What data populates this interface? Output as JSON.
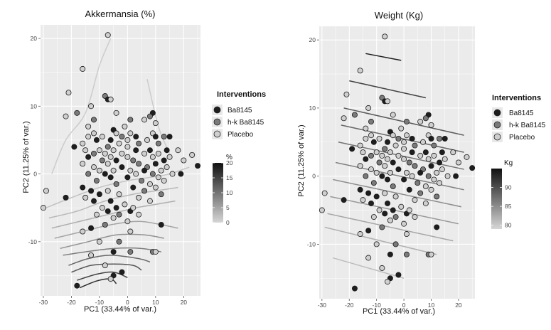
{
  "chart_data": [
    {
      "type": "scatter",
      "title": "Akkermansia (%)",
      "xlabel": "PC1 (33.44% of var.)",
      "ylabel": "PC2 (11.25% of var.)",
      "xlim": [
        -31,
        26
      ],
      "ylim": [
        -18,
        22
      ],
      "xticks": [
        -30,
        -20,
        -10,
        0,
        10,
        20
      ],
      "yticks": [
        -10,
        0,
        10,
        20
      ],
      "grid": true,
      "legend": {
        "title": "Interventions",
        "placement": "right",
        "entries": [
          {
            "label": "Ba8145",
            "color": "#1e1e1e"
          },
          {
            "label": "h-k Ba8145",
            "color": "#7a7a7a"
          },
          {
            "label": "Placebo",
            "color": "#cfcfcf"
          }
        ]
      },
      "colorbar": {
        "title": "%",
        "ticks": [
          "0",
          "5",
          "10",
          "15",
          "20"
        ],
        "range": [
          0,
          20
        ],
        "colors": [
          "#d6d6d6",
          "#111111"
        ]
      },
      "contours": [
        {
          "level": 1,
          "points": [
            [
              -27,
              0
            ],
            [
              -22,
              5
            ],
            [
              -15,
              9
            ],
            [
              -10,
              16
            ],
            [
              -6,
              20
            ]
          ]
        },
        {
          "level": 1,
          "points": [
            [
              7,
              14
            ],
            [
              11,
              7
            ],
            [
              15,
              3
            ]
          ]
        },
        {
          "level": 2,
          "points": [
            [
              -29,
              -5
            ],
            [
              -20,
              -3.5
            ],
            [
              -10,
              -2
            ],
            [
              0,
              -1
            ],
            [
              8,
              -0.5
            ],
            [
              15,
              0
            ],
            [
              22,
              1
            ]
          ]
        },
        {
          "level": 3,
          "points": [
            [
              -28,
              -6.5
            ],
            [
              -18,
              -5.5
            ],
            [
              -8,
              -4
            ],
            [
              2,
              -3
            ],
            [
              10,
              -2.5
            ],
            [
              18,
              -2
            ]
          ]
        },
        {
          "level": 4,
          "points": [
            [
              -27,
              -8
            ],
            [
              -17,
              -7
            ],
            [
              -7,
              -6
            ],
            [
              3,
              -5
            ],
            [
              10,
              -4.5
            ],
            [
              17,
              -4
            ]
          ]
        },
        {
          "level": 5,
          "points": [
            [
              -26,
              -9.5
            ],
            [
              -16,
              -8.5
            ],
            [
              -6,
              -7.5
            ],
            [
              4,
              -7
            ],
            [
              12,
              -7.5
            ],
            [
              18,
              -8
            ]
          ]
        },
        {
          "level": 7,
          "points": [
            [
              -24,
              -11
            ],
            [
              -14,
              -10
            ],
            [
              -4,
              -9
            ],
            [
              6,
              -9
            ],
            [
              13,
              -9.5
            ]
          ]
        },
        {
          "level": 9,
          "points": [
            [
              -23,
              -12
            ],
            [
              -15,
              -11.5
            ],
            [
              -5,
              -11
            ],
            [
              5,
              -11
            ],
            [
              12,
              -11.5
            ]
          ]
        },
        {
          "level": 11,
          "points": [
            [
              -21,
              -13.5
            ],
            [
              -14,
              -12.5
            ],
            [
              -6,
              -12
            ],
            [
              4,
              -12.5
            ],
            [
              8,
              -13
            ]
          ]
        },
        {
          "level": 13,
          "points": [
            [
              -20,
              -14.5
            ],
            [
              -13,
              -13.5
            ],
            [
              -5,
              -13.3
            ],
            [
              2,
              -13.5
            ],
            [
              5,
              -14.2
            ]
          ]
        },
        {
          "level": 15,
          "points": [
            [
              -18,
              -15.7
            ],
            [
              -11,
              -14.8
            ],
            [
              -5,
              -14.5
            ],
            [
              0,
              -15.3
            ]
          ]
        },
        {
          "level": 17,
          "points": [
            [
              -17,
              -16.8
            ],
            [
              -11,
              -15.8
            ],
            [
              -6,
              -15.5
            ],
            [
              -4,
              -16.2
            ]
          ]
        }
      ]
    },
    {
      "type": "scatter",
      "title": "Weight (Kg)",
      "xlabel": "PC1 (33.44% of var.)",
      "ylabel": "PC2 (11.25% of var.)",
      "xlim": [
        -31,
        26
      ],
      "ylim": [
        -18,
        22
      ],
      "xticks": [
        -30,
        -20,
        -10,
        0,
        10,
        20
      ],
      "yticks": [
        -10,
        0,
        10,
        20
      ],
      "grid": true,
      "legend": {
        "title": "Interventions",
        "placement": "right",
        "entries": [
          {
            "label": "Ba8145",
            "color": "#1e1e1e"
          },
          {
            "label": "h-k Ba8145",
            "color": "#7a7a7a"
          },
          {
            "label": "Placebo",
            "color": "#cfcfcf"
          }
        ]
      },
      "colorbar": {
        "title": "Kg",
        "ticks": [
          "80",
          "85",
          "90"
        ],
        "range": [
          79,
          95
        ],
        "colors": [
          "#d6d6d6",
          "#111111"
        ]
      },
      "contours": [
        {
          "level": 94,
          "points": [
            [
              -14,
              18
            ],
            [
              -1,
              17
            ]
          ]
        },
        {
          "level": 91,
          "points": [
            [
              -20,
              14
            ],
            [
              8,
              11.5
            ]
          ]
        },
        {
          "level": 89,
          "points": [
            [
              -22,
              10
            ],
            [
              22,
              6
            ]
          ]
        },
        {
          "level": 88,
          "points": [
            [
              -23,
              7.5
            ],
            [
              22,
              3.5
            ]
          ]
        },
        {
          "level": 87,
          "points": [
            [
              -24,
              5
            ],
            [
              22,
              1
            ]
          ]
        },
        {
          "level": 86,
          "points": [
            [
              -25,
              2
            ],
            [
              22,
              -2
            ]
          ]
        },
        {
          "level": 85,
          "points": [
            [
              -26,
              -0.5
            ],
            [
              21,
              -4.5
            ]
          ]
        },
        {
          "level": 84,
          "points": [
            [
              -27,
              -3
            ],
            [
              20,
              -7
            ]
          ]
        },
        {
          "level": 83,
          "points": [
            [
              -28,
              -5.5
            ],
            [
              18,
              -9.5
            ]
          ]
        },
        {
          "level": 82,
          "points": [
            [
              -29,
              -7.5
            ],
            [
              12,
              -11.5
            ]
          ]
        },
        {
          "level": 81,
          "points": [
            [
              -26,
              -12
            ],
            [
              0,
              -15
            ]
          ]
        }
      ]
    }
  ],
  "points": [
    {
      "x": -7,
      "y": 20.5,
      "g": "Placebo"
    },
    {
      "x": -16,
      "y": 15.5,
      "g": "Placebo"
    },
    {
      "x": -21,
      "y": 12,
      "g": "Placebo"
    },
    {
      "x": -8,
      "y": 11.5,
      "g": "h-k Ba8145"
    },
    {
      "x": -7,
      "y": 11,
      "g": "Ba8145"
    },
    {
      "x": -6,
      "y": 11,
      "g": "Placebo"
    },
    {
      "x": -13,
      "y": 10,
      "g": "Placebo"
    },
    {
      "x": -18,
      "y": 9,
      "g": "h-k Ba8145"
    },
    {
      "x": -4,
      "y": 9,
      "g": "Placebo"
    },
    {
      "x": 9,
      "y": 9,
      "g": "Ba8145"
    },
    {
      "x": -22,
      "y": 8.5,
      "g": "Placebo"
    },
    {
      "x": 8,
      "y": 8.5,
      "g": "h-k Ba8145"
    },
    {
      "x": -12,
      "y": 8,
      "g": "h-k Ba8145"
    },
    {
      "x": 1,
      "y": 8,
      "g": "h-k Ba8145"
    },
    {
      "x": 6,
      "y": 8,
      "g": "Placebo"
    },
    {
      "x": 10,
      "y": 7.5,
      "g": "Placebo"
    },
    {
      "x": -14,
      "y": 7,
      "g": "Placebo"
    },
    {
      "x": -1,
      "y": 7,
      "g": "Placebo"
    },
    {
      "x": -5,
      "y": 6.5,
      "g": "Ba8145"
    },
    {
      "x": -12,
      "y": 6,
      "g": "Placebo"
    },
    {
      "x": -4,
      "y": 6,
      "g": "Placebo"
    },
    {
      "x": 1,
      "y": 6,
      "g": "Placebo"
    },
    {
      "x": 9,
      "y": 6,
      "g": "Placebo"
    },
    {
      "x": -14,
      "y": 5.5,
      "g": "Placebo"
    },
    {
      "x": -9,
      "y": 5.5,
      "g": "Placebo"
    },
    {
      "x": -2,
      "y": 5.5,
      "g": "h-k Ba8145"
    },
    {
      "x": 3,
      "y": 5.5,
      "g": "Ba8145"
    },
    {
      "x": 10,
      "y": 5.5,
      "g": "Ba8145"
    },
    {
      "x": 13,
      "y": 5.5,
      "g": "h-k Ba8145"
    },
    {
      "x": 15,
      "y": 5.5,
      "g": "Ba8145"
    },
    {
      "x": -11,
      "y": 5,
      "g": "Ba8145"
    },
    {
      "x": -6,
      "y": 5,
      "g": "Ba8145"
    },
    {
      "x": 0,
      "y": 5,
      "g": "Placebo"
    },
    {
      "x": 7,
      "y": 5,
      "g": "Placebo"
    },
    {
      "x": -16,
      "y": 4.5,
      "g": "Placebo"
    },
    {
      "x": -3,
      "y": 4.5,
      "g": "Placebo"
    },
    {
      "x": 4,
      "y": 4.5,
      "g": "h-k Ba8145"
    },
    {
      "x": 11,
      "y": 4.5,
      "g": "h-k Ba8145"
    },
    {
      "x": -19,
      "y": 4,
      "g": "Ba8145"
    },
    {
      "x": -7,
      "y": 4,
      "g": "h-k Ba8145"
    },
    {
      "x": 0,
      "y": 4,
      "g": "Placebo"
    },
    {
      "x": -15,
      "y": 3.5,
      "g": "Placebo"
    },
    {
      "x": -10,
      "y": 3.5,
      "g": "Placebo"
    },
    {
      "x": -5,
      "y": 3.5,
      "g": "Placebo"
    },
    {
      "x": 3,
      "y": 3.5,
      "g": "Ba8145"
    },
    {
      "x": 8,
      "y": 3.5,
      "g": "Ba8145"
    },
    {
      "x": 14,
      "y": 3.5,
      "g": "Ba8145"
    },
    {
      "x": 18,
      "y": 3.5,
      "g": "Placebo"
    },
    {
      "x": -12,
      "y": 3,
      "g": "h-k Ba8145"
    },
    {
      "x": -8,
      "y": 3,
      "g": "Placebo"
    },
    {
      "x": -2,
      "y": 3,
      "g": "Placebo"
    },
    {
      "x": 6,
      "y": 3,
      "g": "Placebo"
    },
    {
      "x": 11,
      "y": 3,
      "g": "Placebo"
    },
    {
      "x": -14,
      "y": 2.5,
      "g": "Ba8145"
    },
    {
      "x": -6,
      "y": 2.5,
      "g": "Placebo"
    },
    {
      "x": 0,
      "y": 2.5,
      "g": "Placebo"
    },
    {
      "x": 9,
      "y": 2.5,
      "g": "Placebo"
    },
    {
      "x": 15,
      "y": 2.5,
      "g": "Placebo"
    },
    {
      "x": 23,
      "y": 2.8,
      "g": "Placebo"
    },
    {
      "x": -9,
      "y": 2,
      "g": "h-k Ba8145"
    },
    {
      "x": -4,
      "y": 2,
      "g": "Ba8145"
    },
    {
      "x": 2,
      "y": 2,
      "g": "h-k Ba8145"
    },
    {
      "x": 13,
      "y": 2,
      "g": "Ba8145"
    },
    {
      "x": 20,
      "y": 2,
      "g": "Placebo"
    },
    {
      "x": -16,
      "y": 1.5,
      "g": "Placebo"
    },
    {
      "x": -7,
      "y": 1.5,
      "g": "Placebo"
    },
    {
      "x": 4,
      "y": 1.5,
      "g": "h-k Ba8145"
    },
    {
      "x": 10,
      "y": 1.5,
      "g": "Ba8145"
    },
    {
      "x": -12,
      "y": 1,
      "g": "Placebo"
    },
    {
      "x": -2,
      "y": 1,
      "g": "Ba8145"
    },
    {
      "x": 7,
      "y": 1,
      "g": "h-k Ba8145"
    },
    {
      "x": 14,
      "y": 1,
      "g": "Placebo"
    },
    {
      "x": 25,
      "y": 1.2,
      "g": "Ba8145"
    },
    {
      "x": -10,
      "y": 0.5,
      "g": "Placebo"
    },
    {
      "x": -5,
      "y": 0.5,
      "g": "Placebo"
    },
    {
      "x": 1,
      "y": 0.5,
      "g": "Placebo"
    },
    {
      "x": 6,
      "y": 0.5,
      "g": "Ba8145"
    },
    {
      "x": 12,
      "y": 0.5,
      "g": "Placebo"
    },
    {
      "x": -14,
      "y": 0,
      "g": "h-k Ba8145"
    },
    {
      "x": -8,
      "y": 0,
      "g": "Ba8145"
    },
    {
      "x": 3,
      "y": 0,
      "g": "Placebo"
    },
    {
      "x": 9,
      "y": 0,
      "g": "h-k Ba8145"
    },
    {
      "x": 16,
      "y": 0,
      "g": "Placebo"
    },
    {
      "x": 19,
      "y": 0,
      "g": "Ba8145"
    },
    {
      "x": -6,
      "y": -0.5,
      "g": "Ba8145"
    },
    {
      "x": 0,
      "y": -0.5,
      "g": "Ba8145"
    },
    {
      "x": 11,
      "y": -0.5,
      "g": "Placebo"
    },
    {
      "x": -11,
      "y": -1,
      "g": "h-k Ba8145"
    },
    {
      "x": 5,
      "y": -1,
      "g": "h-k Ba8145"
    },
    {
      "x": 13,
      "y": -1,
      "g": "Placebo"
    },
    {
      "x": -4,
      "y": -1.5,
      "g": "h-k Ba8145"
    },
    {
      "x": 8,
      "y": -1.5,
      "g": "Placebo"
    },
    {
      "x": -16,
      "y": -2,
      "g": "Ba8145"
    },
    {
      "x": 2,
      "y": -2,
      "g": "Ba8145"
    },
    {
      "x": 10,
      "y": -2,
      "g": "Placebo"
    },
    {
      "x": -13,
      "y": -2.5,
      "g": "Ba8145"
    },
    {
      "x": -7,
      "y": -2.5,
      "g": "Placebo"
    },
    {
      "x": 6,
      "y": -2.5,
      "g": "h-k Ba8145"
    },
    {
      "x": -29,
      "y": -2.5,
      "g": "Placebo"
    },
    {
      "x": -10,
      "y": -3,
      "g": "Ba8145"
    },
    {
      "x": -3,
      "y": -3,
      "g": "Placebo"
    },
    {
      "x": 12,
      "y": -3,
      "g": "h-k Ba8145"
    },
    {
      "x": -22,
      "y": -3.5,
      "g": "Ba8145"
    },
    {
      "x": -15,
      "y": -3.5,
      "g": "Placebo"
    },
    {
      "x": 4,
      "y": -3.5,
      "g": "Placebo"
    },
    {
      "x": -12,
      "y": -4,
      "g": "Ba8145"
    },
    {
      "x": -6,
      "y": -4,
      "g": "Ba8145"
    },
    {
      "x": 8,
      "y": -4,
      "g": "Placebo"
    },
    {
      "x": -1,
      "y": -4.5,
      "g": "Placebo"
    },
    {
      "x": -9,
      "y": -5,
      "g": "Placebo"
    },
    {
      "x": -4,
      "y": -5,
      "g": "Ba8145"
    },
    {
      "x": -30,
      "y": -5,
      "g": "Placebo"
    },
    {
      "x": 1,
      "y": -5.5,
      "g": "Ba8145"
    },
    {
      "x": -7,
      "y": -5.5,
      "g": "Ba8145"
    },
    {
      "x": 2,
      "y": -5,
      "g": "Placebo"
    },
    {
      "x": -11,
      "y": -6,
      "g": "Placebo"
    },
    {
      "x": -3,
      "y": -6,
      "g": "h-k Ba8145"
    },
    {
      "x": -5,
      "y": -6.5,
      "g": "Placebo"
    },
    {
      "x": 4,
      "y": -6,
      "g": "Placebo"
    },
    {
      "x": 0,
      "y": -7,
      "g": "Placebo"
    },
    {
      "x": -8,
      "y": -7.5,
      "g": "h-k Ba8145"
    },
    {
      "x": 12,
      "y": -7.5,
      "g": "Ba8145"
    },
    {
      "x": -13,
      "y": -8,
      "g": "Ba8145"
    },
    {
      "x": -16,
      "y": -8.5,
      "g": "Placebo"
    },
    {
      "x": 1,
      "y": -8.5,
      "g": "Placebo"
    },
    {
      "x": -10,
      "y": -10,
      "g": "Placebo"
    },
    {
      "x": -3,
      "y": -10,
      "g": "h-k Ba8145"
    },
    {
      "x": 9,
      "y": -11.5,
      "g": "h-k Ba8145"
    },
    {
      "x": 10,
      "y": -11.5,
      "g": "Placebo"
    },
    {
      "x": -5,
      "y": -11.5,
      "g": "Ba8145"
    },
    {
      "x": 1,
      "y": -11.5,
      "g": "h-k Ba8145"
    },
    {
      "x": -13,
      "y": -12,
      "g": "Placebo"
    },
    {
      "x": -8,
      "y": -13.5,
      "g": "Placebo"
    },
    {
      "x": -5,
      "y": -15,
      "g": "Ba8145"
    },
    {
      "x": -2,
      "y": -14.5,
      "g": "Ba8145"
    },
    {
      "x": -6,
      "y": -15.5,
      "g": "Placebo"
    },
    {
      "x": -18,
      "y": -16.5,
      "g": "Ba8145"
    }
  ]
}
